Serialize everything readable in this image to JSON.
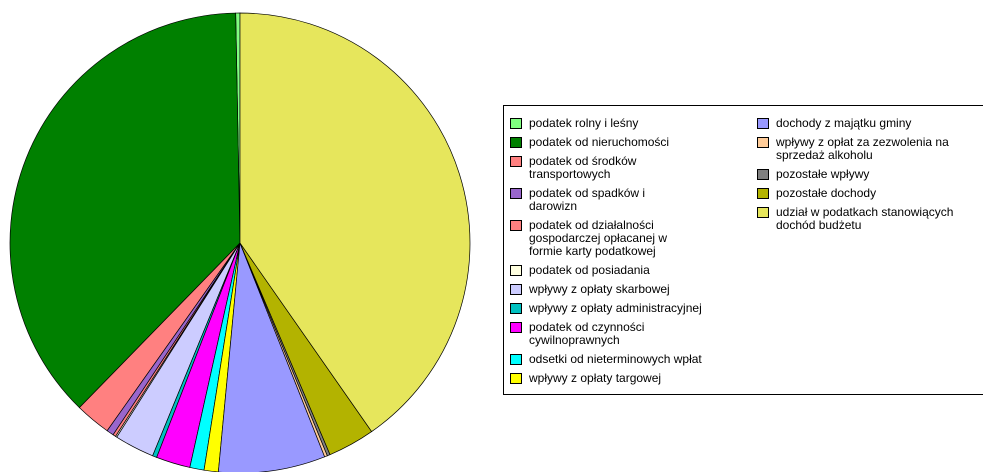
{
  "chart_data": {
    "type": "pie",
    "categories": [
      "podatek rolny i leśny",
      "podatek od nieruchomości",
      "podatek od środków transportowych",
      "podatek od spadków i darowizn",
      "podatek od działalności gospodarczej opłacanej w formie karty podatkowej",
      "podatek od posiadania",
      "wpływy z opłaty skarbowej",
      "wpływy z opłaty administracyjnej",
      "podatek od czynności cywilnoprawnych",
      "odsetki od nieterminowych wpłat",
      "wpływy z opłaty targowej",
      "dochody z majątku gminy",
      "wpływy z opłat za zezwolenia na sprzedaż alkoholu",
      "pozostałe wpływy",
      "pozostałe dochody",
      "udział w podatkach stanowiących dochód budżetu"
    ],
    "values": [
      0.3,
      37.4,
      2.5,
      0.5,
      0.2,
      0.1,
      2.8,
      0.3,
      2.4,
      1.0,
      1.0,
      7.5,
      0.2,
      0.2,
      3.3,
      40.3
    ],
    "colors": [
      "#80ff80",
      "#008000",
      "#ff8080",
      "#9966cc",
      "#ff8080",
      "#ffffe0",
      "#ccccff",
      "#00c0c0",
      "#ff00ff",
      "#00ffff",
      "#ffff00",
      "#9999ff",
      "#ffcc99",
      "#808080",
      "#b3b300",
      "#e6e65c"
    ]
  }
}
